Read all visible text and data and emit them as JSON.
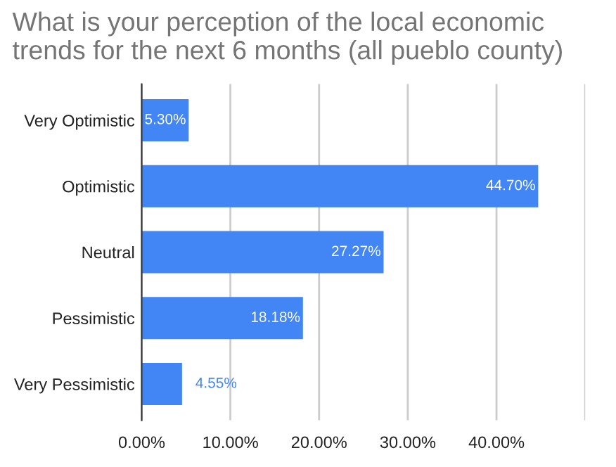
{
  "chart_data": {
    "type": "bar",
    "orientation": "horizontal",
    "title": "What is your perception of the local economic trends for the next 6 months (all pueblo county)",
    "categories": [
      "Very Optimistic",
      "Optimistic",
      "Neutral",
      "Pessimistic",
      "Very Pessimistic"
    ],
    "values": [
      5.3,
      44.7,
      27.27,
      18.18,
      4.55
    ],
    "value_labels": [
      "5.30%",
      "44.70%",
      "27.27%",
      "18.18%",
      "4.55%"
    ],
    "color": "#4285f4",
    "xlim": [
      0,
      50
    ],
    "xticks": [
      {
        "value": 0,
        "label": "0.00%"
      },
      {
        "value": 10,
        "label": "10.00%"
      },
      {
        "value": 20,
        "label": "20.00%"
      },
      {
        "value": 30,
        "label": "30.00%"
      },
      {
        "value": 40,
        "label": "40.00%"
      },
      {
        "value": 50,
        "label": null
      }
    ],
    "grid": "x",
    "legend": false
  }
}
